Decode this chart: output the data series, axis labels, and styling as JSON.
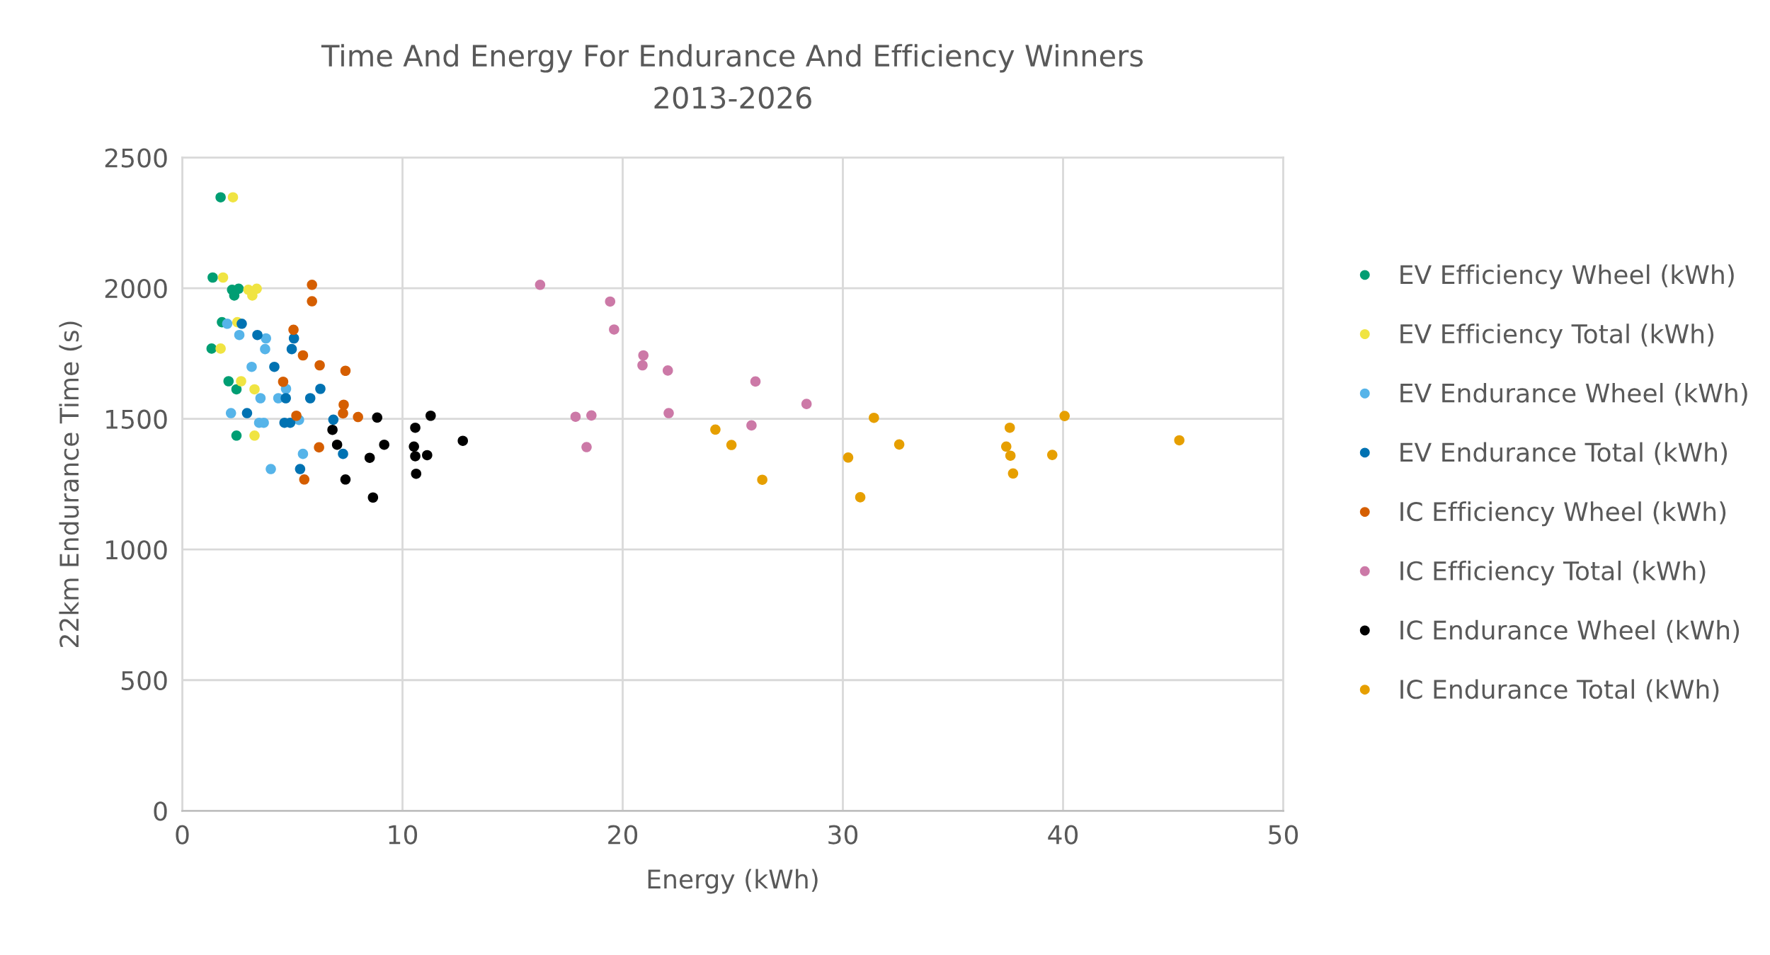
{
  "chart_data": {
    "type": "scatter",
    "title": "Time And Energy For Endurance And Efficiency Winners\n2013-2026",
    "xlabel": "Energy (kWh)",
    "ylabel": "22km Endurance Time (s)",
    "xlim": [
      0,
      50
    ],
    "xticks": [
      0,
      10,
      20,
      30,
      40,
      50
    ],
    "ylim": [
      0,
      2500
    ],
    "yticks": [
      0,
      500,
      1000,
      1500,
      2000,
      2500
    ],
    "grid": true,
    "legend": "right",
    "marker": "circle",
    "series": [
      {
        "name": "EV Efficiency Wheel (kWh)",
        "color": "#009e73",
        "x": [
          1.74,
          1.38,
          2.26,
          2.36,
          2.56,
          1.8,
          1.33,
          2.1,
          2.46,
          2.46
        ],
        "values": [
          2348,
          2041,
          1994,
          1972,
          1998,
          1870,
          1769,
          1644,
          1613,
          1436
        ]
      },
      {
        "name": "EV Efficiency Total (kWh)",
        "color": "#f0e442",
        "x": [
          2.3,
          1.85,
          3.0,
          3.18,
          3.38,
          2.5,
          1.74,
          2.67,
          3.28,
          3.28
        ],
        "values": [
          2348,
          2041,
          1994,
          1972,
          1998,
          1870,
          1769,
          1644,
          1613,
          1436
        ]
      },
      {
        "name": "EV Endurance Wheel (kWh)",
        "color": "#56b4e9",
        "x": [
          2.04,
          2.59,
          3.8,
          3.76,
          3.15,
          4.71,
          3.55,
          4.36,
          2.21,
          3.49,
          3.7,
          5.3,
          5.48,
          4.02
        ],
        "values": [
          1864,
          1821,
          1808,
          1767,
          1699,
          1615,
          1579,
          1579,
          1522,
          1485,
          1485,
          1496,
          1366,
          1308
        ]
      },
      {
        "name": "EV Endurance Total (kWh)",
        "color": "#0072b2",
        "x": [
          2.7,
          3.41,
          5.07,
          4.97,
          4.18,
          6.27,
          4.7,
          5.81,
          2.94,
          4.64,
          4.9,
          6.86,
          7.3,
          5.35
        ],
        "values": [
          1864,
          1821,
          1808,
          1767,
          1699,
          1615,
          1579,
          1579,
          1522,
          1485,
          1485,
          1497,
          1366,
          1308
        ]
      },
      {
        "name": "IC Efficiency Wheel (kWh)",
        "color": "#d55e00",
        "x": [
          5.89,
          5.89,
          5.05,
          5.48,
          6.24,
          7.41,
          4.58,
          7.33,
          7.3,
          5.18,
          7.98,
          6.21,
          5.54
        ],
        "values": [
          2013,
          1950,
          1841,
          1743,
          1705,
          1684,
          1642,
          1554,
          1521,
          1512,
          1507,
          1391,
          1268
        ]
      },
      {
        "name": "IC Efficiency Total (kWh)",
        "color": "#cc79a7",
        "x": [
          16.25,
          19.43,
          19.61,
          20.94,
          20.9,
          22.05,
          26.03,
          28.35,
          17.86,
          18.58,
          22.09,
          25.85,
          18.36
        ],
        "values": [
          2013,
          1949,
          1842,
          1743,
          1705,
          1685,
          1643,
          1557,
          1508,
          1513,
          1522,
          1475,
          1392
        ]
      },
      {
        "name": "IC Endurance Wheel (kWh)",
        "color": "#000000",
        "x": [
          8.85,
          11.28,
          6.82,
          10.58,
          7.03,
          9.17,
          10.52,
          12.74,
          8.51,
          10.58,
          11.12,
          10.62,
          7.41,
          8.66
        ],
        "values": [
          1505,
          1512,
          1458,
          1466,
          1401,
          1401,
          1394,
          1416,
          1351,
          1357,
          1361,
          1290,
          1268,
          1199
        ]
      },
      {
        "name": "IC Endurance Total (kWh)",
        "color": "#e69f00",
        "x": [
          24.21,
          24.94,
          26.34,
          30.24,
          30.79,
          31.41,
          32.56,
          37.58,
          37.42,
          37.61,
          37.73,
          39.51,
          40.07,
          45.28
        ],
        "values": [
          1459,
          1400,
          1267,
          1352,
          1200,
          1504,
          1402,
          1466,
          1394,
          1359,
          1291,
          1362,
          1511,
          1418
        ]
      }
    ]
  }
}
